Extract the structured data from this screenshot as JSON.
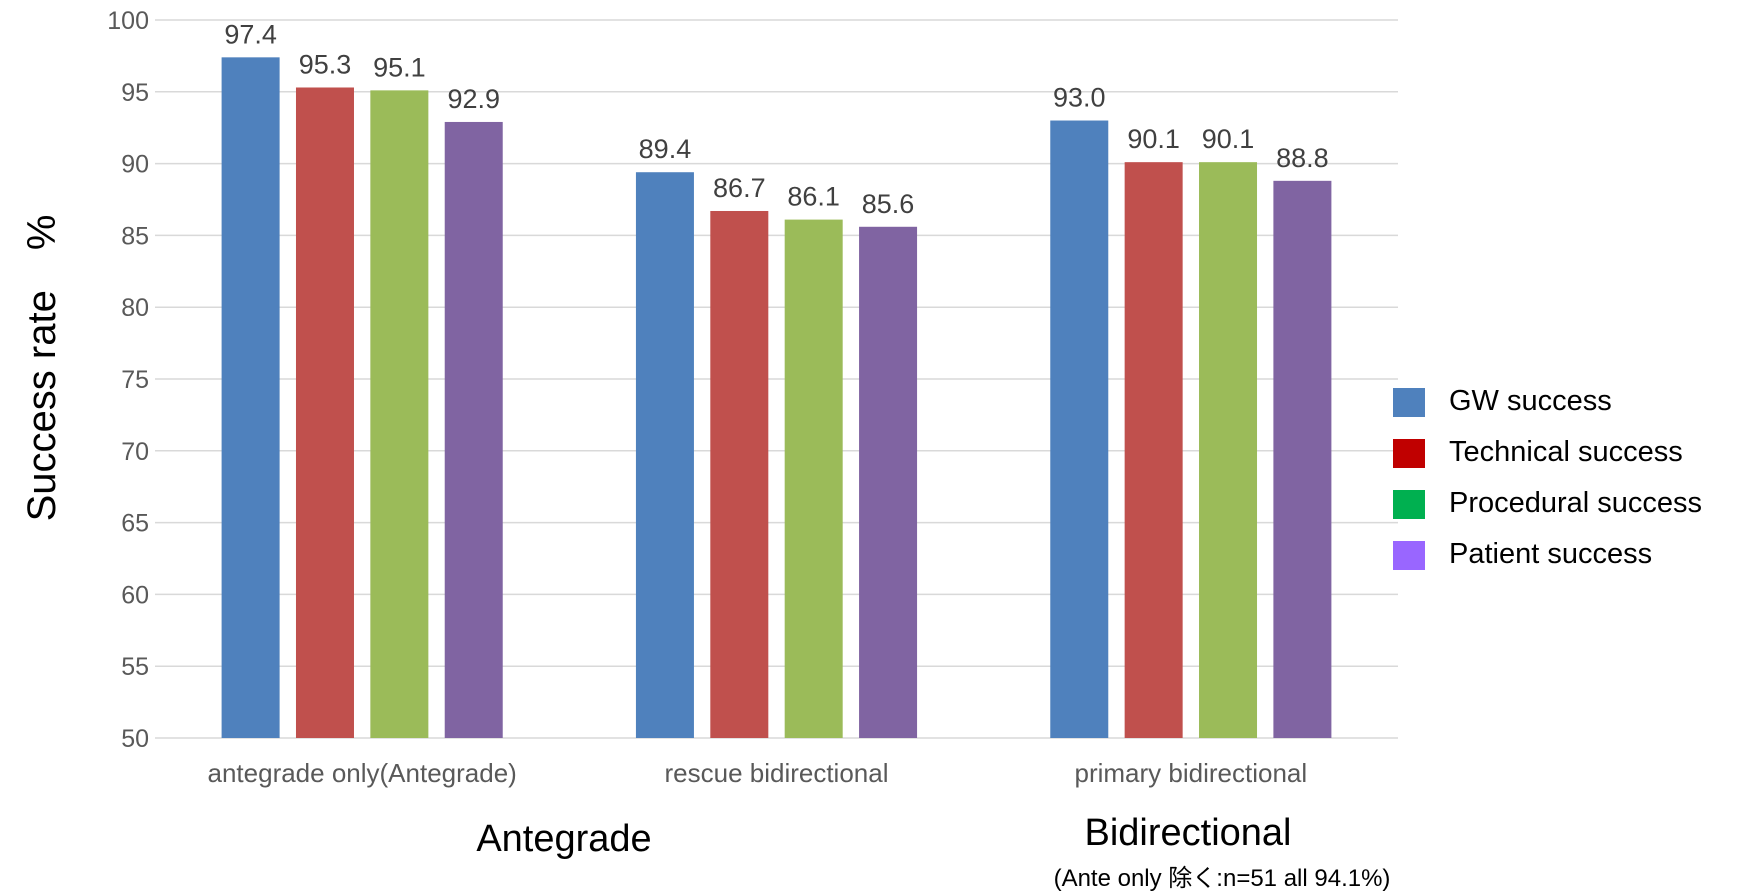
{
  "chart_data": {
    "type": "bar",
    "title": "",
    "ylabel": "Success rate　%",
    "xlabel": "",
    "ylim": [
      50,
      100
    ],
    "yticks": [
      50,
      55,
      60,
      65,
      70,
      75,
      80,
      85,
      90,
      95,
      100
    ],
    "grid": true,
    "legend_position": "right",
    "categories": [
      "antegrade only(Antegrade)",
      "rescue bidirectional",
      "primary bidirectional"
    ],
    "series": [
      {
        "name": "GW success",
        "values": [
          97.4,
          89.4,
          93.0
        ],
        "labels": [
          "97.4",
          "89.4",
          "93.0"
        ],
        "color": "#4F81BD",
        "legend_color": "#4F81BD"
      },
      {
        "name": "Technical success",
        "values": [
          95.3,
          86.7,
          90.1
        ],
        "labels": [
          "95.3",
          "86.7",
          "90.1"
        ],
        "color": "#C0504D",
        "legend_color": "#C00000"
      },
      {
        "name": "Procedural success",
        "values": [
          95.1,
          86.1,
          90.1
        ],
        "labels": [
          "95.1",
          "86.1",
          "90.1"
        ],
        "color": "#9BBB59",
        "legend_color": "#00B050"
      },
      {
        "name": "Patient success",
        "values": [
          92.9,
          85.6,
          88.8
        ],
        "labels": [
          "92.9",
          "85.6",
          "88.8"
        ],
        "color": "#8064A2",
        "legend_color": "#9966FF"
      }
    ],
    "group_labels": [
      {
        "text": "Antegrade"
      },
      {
        "text": "Bidirectional",
        "note": "(Ante only 除く:n=51 all 94.1%)"
      }
    ],
    "colors": {
      "grid": "#D9D9D9",
      "tick_text": "#595959",
      "label_text": "#404040"
    }
  }
}
